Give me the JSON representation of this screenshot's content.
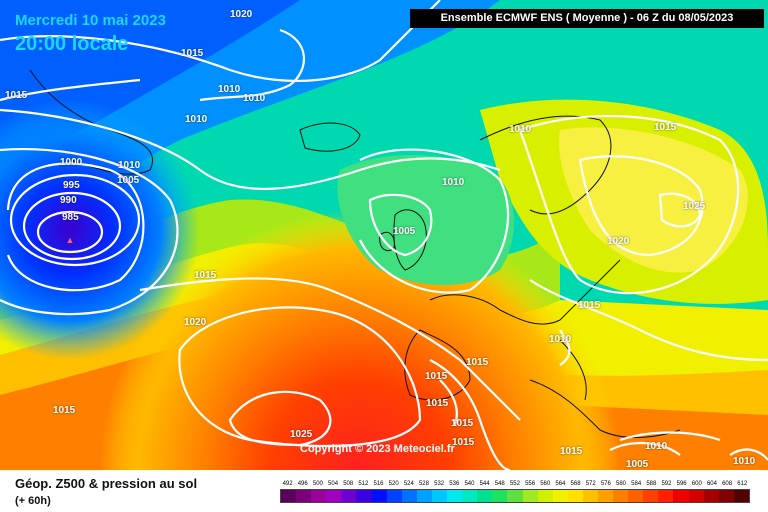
{
  "header": {
    "date": "Mercredi 10 mai 2023",
    "time": "20:00 locale",
    "model": "Ensemble ECMWF ENS  ( Moyenne )  -  06 Z du 08/05/2023"
  },
  "copyright": "Copyright © 2023 Meteociel.fr",
  "low_center_symbol": "▲",
  "isobars": [
    {
      "key": "p1020a",
      "value": "1020"
    },
    {
      "key": "p1015a",
      "value": "1015"
    },
    {
      "key": "p1015b",
      "value": "1015"
    },
    {
      "key": "p1010a",
      "value": "1010"
    },
    {
      "key": "p1010b",
      "value": "1010"
    },
    {
      "key": "p1010c",
      "value": "1010"
    },
    {
      "key": "p1010d",
      "value": "1010"
    },
    {
      "key": "p1010e",
      "value": "1010"
    },
    {
      "key": "p1000",
      "value": "1000"
    },
    {
      "key": "p1005a",
      "value": "1005"
    },
    {
      "key": "p995",
      "value": "995"
    },
    {
      "key": "p990",
      "value": "990"
    },
    {
      "key": "p985",
      "value": "985"
    },
    {
      "key": "p1010f",
      "value": "1010"
    },
    {
      "key": "p1005b",
      "value": "1005"
    },
    {
      "key": "p1015c",
      "value": "1015"
    },
    {
      "key": "p1015d",
      "value": "1015"
    },
    {
      "key": "p1025a",
      "value": "1025"
    },
    {
      "key": "p1020b",
      "value": "1020"
    },
    {
      "key": "p1015e",
      "value": "1015"
    },
    {
      "key": "p1020c",
      "value": "1020"
    },
    {
      "key": "p1015f",
      "value": "1015"
    },
    {
      "key": "p1010g",
      "value": "1010"
    },
    {
      "key": "p1015g",
      "value": "1015"
    },
    {
      "key": "p1015h",
      "value": "1015"
    },
    {
      "key": "p1015i",
      "value": "1015"
    },
    {
      "key": "p1015j",
      "value": "1015"
    },
    {
      "key": "p1015k",
      "value": "1015"
    },
    {
      "key": "p1025b",
      "value": "1025"
    },
    {
      "key": "p1010h",
      "value": "1010"
    },
    {
      "key": "p1005c",
      "value": "1005"
    },
    {
      "key": "p1015l",
      "value": "1015"
    },
    {
      "key": "p1010i",
      "value": "1010"
    }
  ],
  "footer": {
    "title": "Géop. Z500 & pression au sol",
    "subtitle": "(+ 60h)"
  },
  "legend": {
    "values": [
      "492",
      "496",
      "500",
      "504",
      "508",
      "512",
      "516",
      "520",
      "524",
      "528",
      "532",
      "536",
      "540",
      "544",
      "548",
      "552",
      "556",
      "560",
      "564",
      "568",
      "572",
      "576",
      "580",
      "584",
      "588",
      "592",
      "596",
      "600",
      "604",
      "608",
      "612"
    ],
    "colors": [
      "#5a005a",
      "#7a007a",
      "#9a009a",
      "#a000c0",
      "#7000d0",
      "#3a00e0",
      "#0010ff",
      "#0040ff",
      "#0070ff",
      "#00a0ff",
      "#00c8ff",
      "#00e8f0",
      "#00e8c0",
      "#00e090",
      "#20e060",
      "#60e040",
      "#a0e820",
      "#d0f000",
      "#f0f000",
      "#ffe000",
      "#ffc000",
      "#ffa000",
      "#ff8000",
      "#ff6000",
      "#ff4000",
      "#ff2000",
      "#f00000",
      "#d00000",
      "#a80000",
      "#800000",
      "#500000"
    ]
  }
}
